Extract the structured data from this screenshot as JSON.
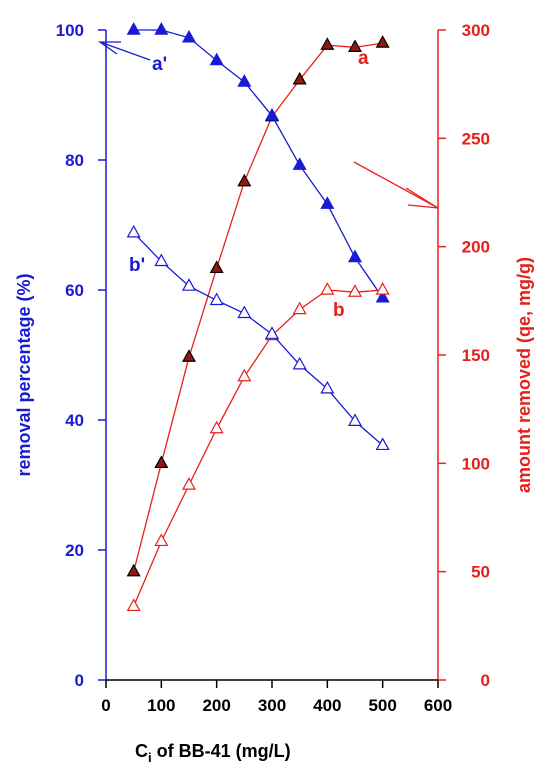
{
  "chart_data": {
    "type": "scatter",
    "title": "",
    "xlabel": "",
    "xlabel_parts": {
      "main": "C",
      "subscript": "i",
      "rest": " of BB-41  (mg/L)"
    },
    "ylabel_left": "removal percentage (%)",
    "ylabel_right": "amount removed (qe, mg/g)",
    "xlim": [
      0,
      600
    ],
    "ylim_left": [
      0,
      100
    ],
    "ylim_right": [
      0,
      300
    ],
    "x_ticks": [
      0,
      100,
      200,
      300,
      400,
      500,
      600
    ],
    "left_ticks": [
      0,
      20,
      40,
      60,
      80,
      100
    ],
    "right_ticks": [
      0,
      50,
      100,
      150,
      200,
      250,
      300
    ],
    "colors": {
      "left_axis": "#1a1ad4",
      "right_axis": "#e8201c",
      "series_a_fill": "#8b1a10"
    },
    "legend": "none",
    "grid": false,
    "series": [
      {
        "name": "a",
        "axis": "right",
        "marker": "filled-triangle",
        "color": "#e8201c",
        "x": [
          50,
          100,
          150,
          200,
          250,
          300,
          350,
          400,
          450,
          500
        ],
        "values": [
          50,
          100,
          149,
          190,
          230,
          260,
          277,
          293,
          292,
          294
        ]
      },
      {
        "name": "a'",
        "axis": "left",
        "marker": "filled-triangle",
        "color": "#1a1ad4",
        "x": [
          50,
          100,
          150,
          200,
          250,
          300,
          350,
          400,
          450,
          500
        ],
        "values": [
          100,
          100,
          98.8,
          95.3,
          92,
          86.8,
          79.2,
          73.2,
          65,
          58.8
        ]
      },
      {
        "name": "b",
        "axis": "right",
        "marker": "open-triangle",
        "color": "#e8201c",
        "x": [
          50,
          100,
          150,
          200,
          250,
          300,
          350,
          400,
          450,
          500
        ],
        "values": [
          34,
          64,
          90,
          116,
          140,
          159,
          171,
          180,
          179,
          180
        ]
      },
      {
        "name": "b'",
        "axis": "left",
        "marker": "open-triangle",
        "color": "#1a1ad4",
        "x": [
          50,
          100,
          150,
          200,
          250,
          300,
          350,
          400,
          450,
          500
        ],
        "values": [
          68.8,
          64.4,
          60.6,
          58.4,
          56.4,
          53.2,
          48.5,
          44.8,
          39.8,
          36.1
        ]
      }
    ],
    "annotations": [
      {
        "text": "a'",
        "series": "a'"
      },
      {
        "text": "a",
        "series": "a"
      },
      {
        "text": "b'",
        "series": "b'"
      },
      {
        "text": "b",
        "series": "b"
      }
    ]
  }
}
